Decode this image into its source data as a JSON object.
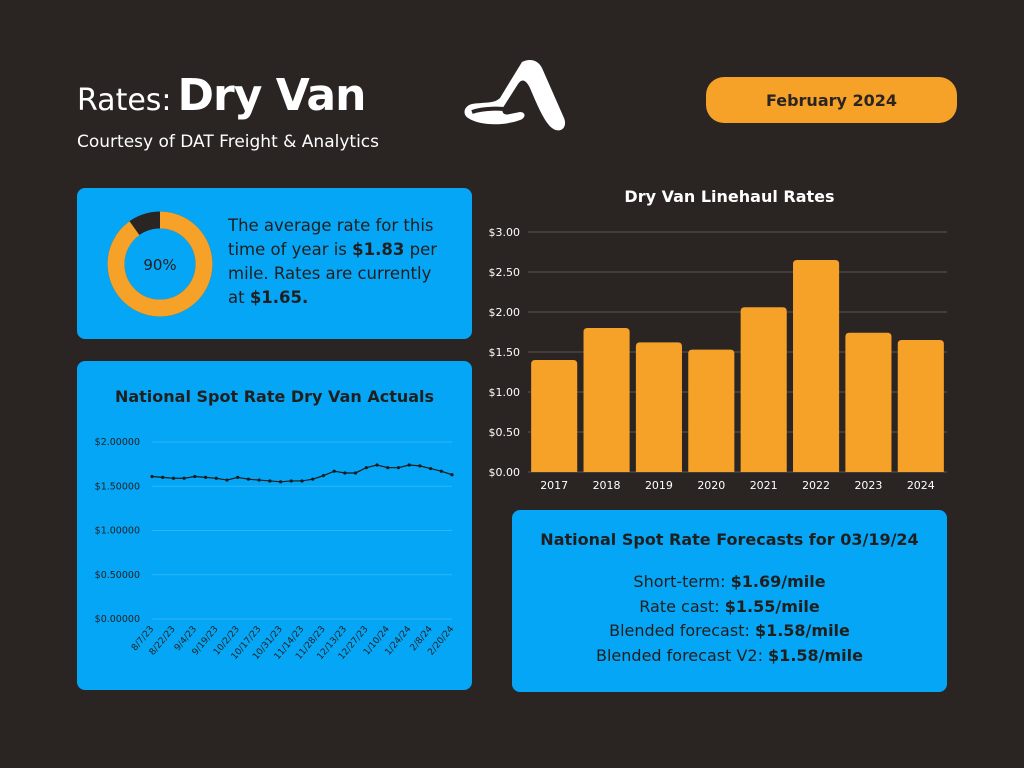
{
  "header": {
    "title_prefix": "Rates:",
    "title_main": "Dry Van",
    "subtitle": "Courtesy of DAT Freight & Analytics",
    "date_badge": "February 2024",
    "logo_icon": "stylized-a-logo-icon"
  },
  "colors": {
    "background": "#2a2423",
    "orange": "#f6a128",
    "card_blue": "#05a6f5",
    "donut_track": "#2a2423"
  },
  "average_card": {
    "percent_label": "90%",
    "percent_value": 0.9,
    "text_1": "The average rate for this time of year is ",
    "avg_rate": "$1.83",
    "text_2": " per mile. Rates are currently at ",
    "current_rate": "$1.65."
  },
  "forecast_card": {
    "title": "National Spot Rate Forecasts for 03/19/24",
    "lines": [
      {
        "label": "Short-term: ",
        "value": "$1.69/mile"
      },
      {
        "label": "Rate cast: ",
        "value": "$1.55/mile"
      },
      {
        "label": "Blended forecast: ",
        "value": "$1.58/mile"
      },
      {
        "label": "Blended forecast V2: ",
        "value": "$1.58/mile"
      }
    ]
  },
  "chart_data": [
    {
      "type": "bar",
      "title": "Dry Van Linehaul Rates",
      "categories": [
        "2017",
        "2018",
        "2019",
        "2020",
        "2021",
        "2022",
        "2023",
        "2024"
      ],
      "values": [
        1.4,
        1.8,
        1.62,
        1.53,
        2.06,
        2.65,
        1.74,
        1.65
      ],
      "ylim": [
        0,
        3.0
      ],
      "yticks": [
        0,
        0.5,
        1.0,
        1.5,
        2.0,
        2.5,
        3.0
      ],
      "ytick_labels": [
        "$0.00",
        "$0.50",
        "$1.00",
        "$1.50",
        "$2.00",
        "$2.50",
        "$3.00"
      ],
      "grid": true,
      "bar_color": "#f6a128"
    },
    {
      "type": "line",
      "title": "National Spot Rate Dry Van Actuals",
      "x": [
        "8/7/23",
        "",
        "8/22/23",
        "",
        "9/4/23",
        "",
        "9/19/23",
        "",
        "10/2/23",
        "",
        "10/17/23",
        "",
        "10/31/23",
        "",
        "11/14/23",
        "",
        "11/28/23",
        "",
        "12/13/23",
        "",
        "12/27/23",
        "",
        "1/10/24",
        "",
        "1/24/24",
        "",
        "2/8/24",
        "",
        "2/20/24"
      ],
      "x_labels": [
        "8/7/23",
        "8/22/23",
        "9/4/23",
        "9/19/23",
        "10/2/23",
        "10/17/23",
        "10/31/23",
        "11/14/23",
        "11/28/23",
        "12/13/23",
        "12/27/23",
        "1/10/24",
        "1/24/24",
        "2/8/24",
        "2/20/24"
      ],
      "values": [
        1.61,
        1.6,
        1.59,
        1.59,
        1.61,
        1.6,
        1.59,
        1.57,
        1.6,
        1.58,
        1.57,
        1.56,
        1.55,
        1.56,
        1.56,
        1.58,
        1.62,
        1.67,
        1.65,
        1.65,
        1.71,
        1.74,
        1.71,
        1.71,
        1.74,
        1.73,
        1.7,
        1.67,
        1.63
      ],
      "ylim": [
        0,
        2.0
      ],
      "yticks": [
        0,
        0.5,
        1.0,
        1.5,
        2.0
      ],
      "ytick_labels": [
        "$0.00000",
        "$0.50000",
        "$1.00000",
        "$1.50000",
        "$2.00000"
      ],
      "grid": true,
      "line_color": "#1a1a1a"
    }
  ]
}
